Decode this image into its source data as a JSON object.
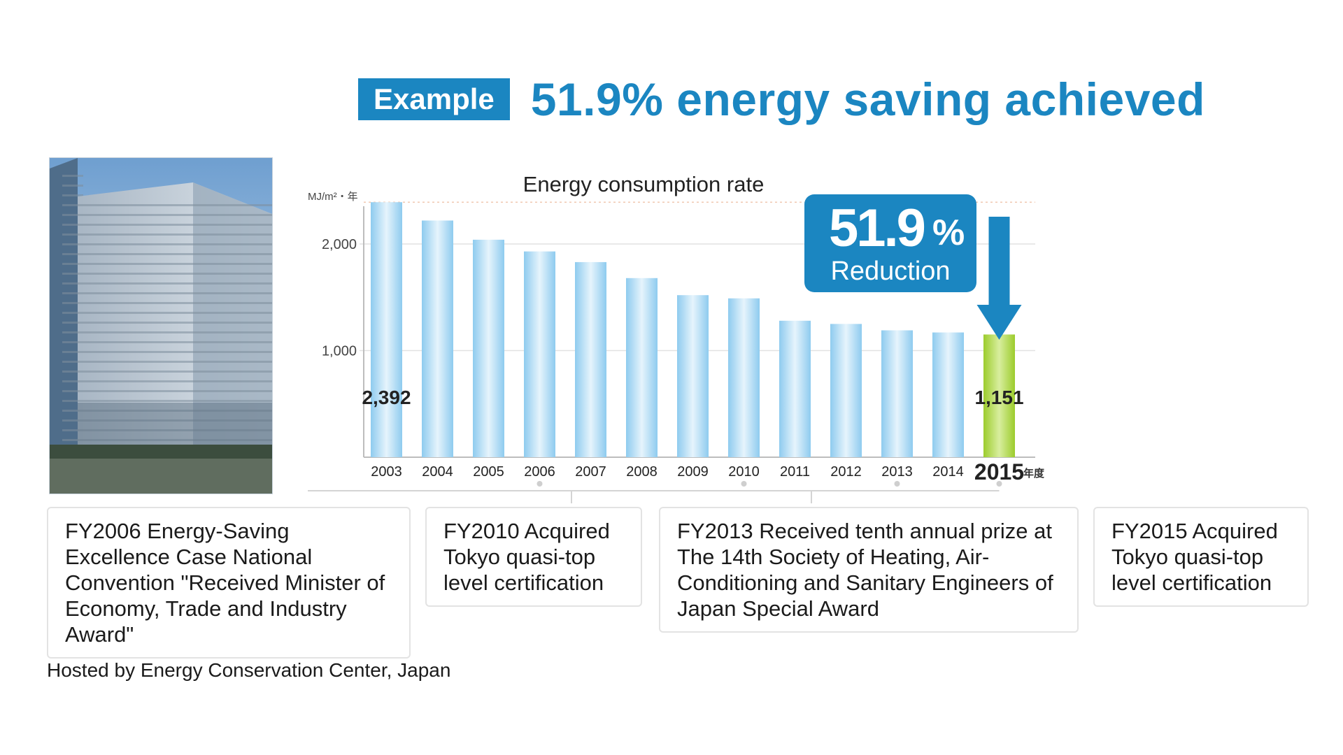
{
  "header": {
    "tag": "Example",
    "headline": "51.9% energy saving achieved"
  },
  "chart_data": {
    "type": "bar",
    "title": "Energy consumption rate",
    "ylabel": "MJ/m²・年",
    "xlabel": "年度",
    "ylim": [
      0,
      2400
    ],
    "yticks": [
      1000,
      2000
    ],
    "ytick_labels": [
      "1,000",
      "2,000"
    ],
    "categories": [
      "2003",
      "2004",
      "2005",
      "2006",
      "2007",
      "2008",
      "2009",
      "2010",
      "2011",
      "2012",
      "2013",
      "2014",
      "2015"
    ],
    "values": [
      2392,
      2220,
      2040,
      1930,
      1830,
      1680,
      1520,
      1490,
      1280,
      1250,
      1190,
      1170,
      1151
    ],
    "data_labels": {
      "first": "2,392",
      "last": "1,151"
    },
    "colors": {
      "bar": "#8ecbef",
      "highlight": "#9ccc2c",
      "accent": "#1b86c1"
    },
    "callout": {
      "value": "51.9",
      "unit": "%",
      "text": "Reduction"
    }
  },
  "awards": [
    {
      "text": "FY2006 Energy-Saving Excellence Case National Convention \"Received Minister of Economy, Trade and Industry Award\""
    },
    {
      "text": "FY2010 Acquired Tokyo quasi-top level certification"
    },
    {
      "text": "FY2013 Received tenth annual prize at The 14th Society of Heating, Air-Conditioning and Sanitary Engineers of Japan Special Award"
    },
    {
      "text": "FY2015 Acquired Tokyo quasi-top level certification"
    }
  ],
  "footnote": "Hosted by Energy Conservation Center, Japan"
}
